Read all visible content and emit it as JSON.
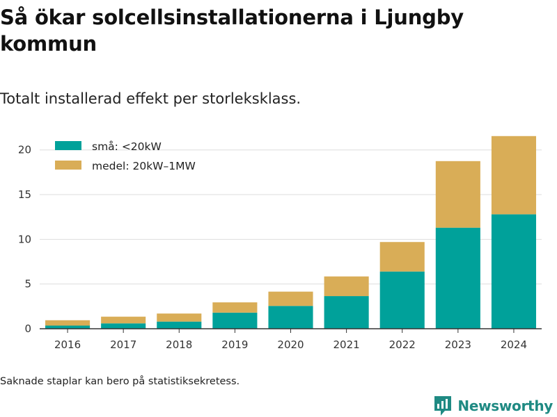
{
  "header": {
    "title": "Så ökar solcellsinstallationerna i Ljungby kommun",
    "subtitle": "Totalt installerad effekt per storleksklass."
  },
  "footer": {
    "note": "Saknade staplar kan bero på statistiksekretess.",
    "brand": "Newsworthy",
    "brand_icon": "newsworthy-logo-icon"
  },
  "colors": {
    "small": "#00a19a",
    "medium": "#d9ad57",
    "brand": "#1f8a83",
    "grid": "#dddddd",
    "axis": "#333333"
  },
  "chart_data": {
    "type": "bar",
    "stacked": true,
    "categories": [
      "2016",
      "2017",
      "2018",
      "2019",
      "2020",
      "2021",
      "2022",
      "2023",
      "2024"
    ],
    "series": [
      {
        "name": "små: <20kW",
        "values": [
          0.35,
          0.6,
          0.8,
          1.8,
          2.55,
          3.65,
          6.4,
          11.3,
          12.8
        ]
      },
      {
        "name": "medel: 20kW–1MW",
        "values": [
          0.6,
          0.75,
          0.9,
          1.15,
          1.6,
          2.2,
          3.3,
          7.45,
          8.75
        ]
      }
    ],
    "ylim": [
      0,
      22
    ],
    "yticks": [
      0,
      5,
      10,
      15,
      20
    ],
    "grid": true,
    "legend_position": "top-left",
    "xlabel": "",
    "ylabel": ""
  }
}
